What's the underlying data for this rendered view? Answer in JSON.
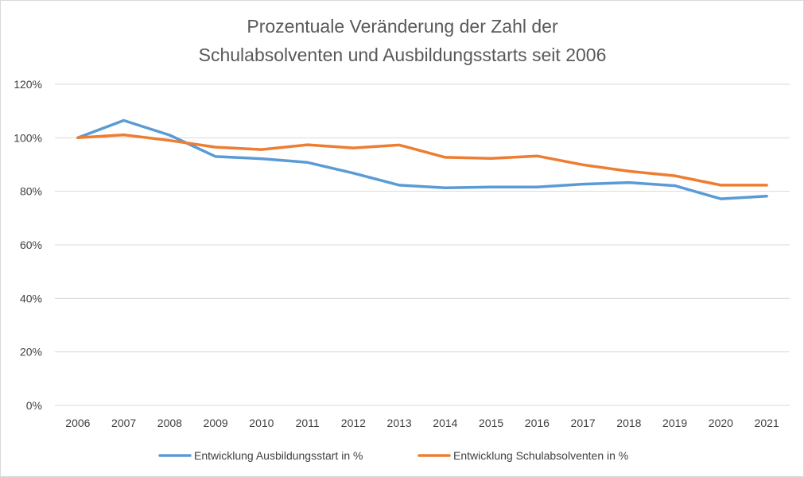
{
  "chart_data": {
    "type": "line",
    "title": "Prozentuale Veränderung der Zahl der",
    "subtitle": "Schulabsolventen und Ausbildungsstarts seit 2006",
    "x": [
      "2006",
      "2007",
      "2008",
      "2009",
      "2010",
      "2011",
      "2012",
      "2013",
      "2014",
      "2015",
      "2016",
      "2017",
      "2018",
      "2019",
      "2020",
      "2021"
    ],
    "y_ticks": [
      "0%",
      "20%",
      "40%",
      "60%",
      "80%",
      "100%",
      "120%"
    ],
    "ylim": [
      0,
      120
    ],
    "grid": true,
    "legend_position": "bottom",
    "series": [
      {
        "name": "Entwicklung Ausbildungsstart in %",
        "color": "#5b9bd5",
        "values": [
          100,
          106.5,
          101,
          93,
          92.2,
          90.8,
          86.8,
          82.3,
          81.3,
          81.6,
          81.6,
          82.7,
          83.3,
          82.1,
          77.2,
          78.2
        ]
      },
      {
        "name": "Entwicklung Schulabsolventen in %",
        "color": "#ed7d31",
        "values": [
          100,
          101.1,
          99,
          96.5,
          95.6,
          97.4,
          96.2,
          97.3,
          92.7,
          92.3,
          93.2,
          89.9,
          87.5,
          85.8,
          82.3,
          82.3
        ]
      }
    ]
  }
}
